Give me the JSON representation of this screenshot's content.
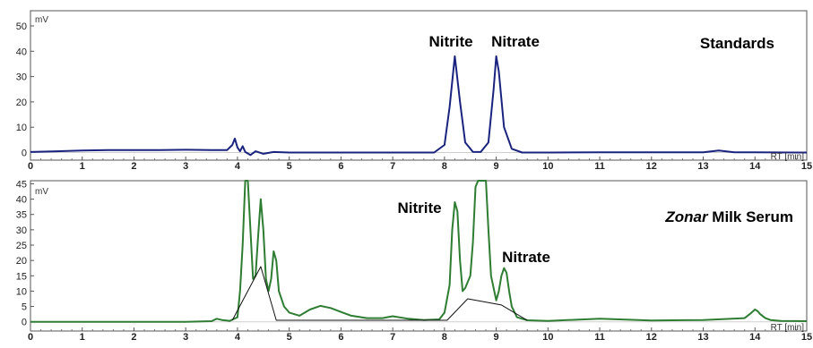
{
  "chart_data": [
    {
      "type": "line",
      "panel": "top",
      "y_unit_label": "mV",
      "x_unit_label": "RT [min]",
      "xlim": [
        0,
        15
      ],
      "ylim": [
        -3,
        56
      ],
      "x_ticks": [
        "0",
        "1",
        "2",
        "3",
        "4",
        "5",
        "6",
        "7",
        "8",
        "9",
        "10",
        "11",
        "12",
        "13",
        "14",
        "15"
      ],
      "y_ticks": [
        "0",
        "10",
        "20",
        "30",
        "40",
        "50"
      ],
      "label": "Standards",
      "annotations": [
        {
          "text": "Nitrite",
          "x": 8.2,
          "y": 41
        },
        {
          "text": "Nitrate",
          "x": 9.0,
          "y": 41
        }
      ],
      "color": "#1a237e",
      "series": [
        {
          "x": [
            0,
            0.5,
            1.0,
            1.5,
            2.0,
            2.5,
            3.0,
            3.5,
            3.8,
            3.9,
            3.95,
            4.0,
            4.05,
            4.1,
            4.15,
            4.25,
            4.35,
            4.5,
            4.7,
            5.0,
            6.0,
            7.0,
            7.8,
            8.0,
            8.1,
            8.2,
            8.3,
            8.4,
            8.55,
            8.7,
            8.85,
            8.95,
            9.0,
            9.05,
            9.15,
            9.3,
            9.5,
            10.0,
            11.0,
            12.0,
            13.0,
            13.3,
            13.6,
            14.0,
            15.0
          ],
          "y": [
            0.2,
            0.5,
            0.8,
            1.0,
            1.0,
            1.0,
            1.1,
            1.0,
            1.0,
            3.0,
            5.5,
            2.0,
            0.5,
            2.5,
            0.2,
            -1.0,
            0.5,
            -0.5,
            0.2,
            0.0,
            0.0,
            0.0,
            0.0,
            3.0,
            18.0,
            38.0,
            20.0,
            4.0,
            0.3,
            0.2,
            4.0,
            25.0,
            38.0,
            32.0,
            10.0,
            1.5,
            0.0,
            0.0,
            0.1,
            0.1,
            0.1,
            0.8,
            0.1,
            0.1,
            0.0
          ]
        }
      ]
    },
    {
      "type": "line",
      "panel": "bottom",
      "y_unit_label": "mV",
      "x_unit_label": "RT [min]",
      "xlim": [
        0,
        15
      ],
      "ylim": [
        -3,
        46
      ],
      "x_ticks": [
        "0",
        "1",
        "2",
        "3",
        "4",
        "5",
        "6",
        "7",
        "8",
        "9",
        "10",
        "11",
        "12",
        "13",
        "14",
        "15"
      ],
      "y_ticks": [
        "0",
        "5",
        "10",
        "15",
        "20",
        "25",
        "30",
        "35",
        "40",
        "45"
      ],
      "label_italic": "Zonar",
      "label_rest": " Milk Serum",
      "annotations": [
        {
          "text": "Nitrite",
          "x": 7.55,
          "y": 40
        },
        {
          "text": "Nitrate",
          "x": 9.0,
          "y": 22
        }
      ],
      "color": "#2e7d32",
      "series": [
        {
          "x": [
            0,
            1.0,
            2.0,
            3.0,
            3.5,
            3.6,
            3.7,
            3.85,
            4.0,
            4.05,
            4.1,
            4.15,
            4.2,
            4.25,
            4.3,
            4.35,
            4.4,
            4.45,
            4.5,
            4.55,
            4.6,
            4.65,
            4.7,
            4.75,
            4.8,
            4.9,
            5.0,
            5.2,
            5.4,
            5.6,
            5.8,
            6.0,
            6.2,
            6.5,
            6.8,
            7.0,
            7.3,
            7.6,
            7.9,
            8.0,
            8.1,
            8.15,
            8.2,
            8.25,
            8.3,
            8.35,
            8.4,
            8.5,
            8.55,
            8.6,
            8.65,
            8.7,
            8.75,
            8.8,
            8.85,
            8.9,
            9.0,
            9.05,
            9.1,
            9.15,
            9.2,
            9.25,
            9.3,
            9.4,
            9.6,
            10.0,
            11.0,
            12.0,
            13.0,
            13.8,
            13.9,
            14.0,
            14.05,
            14.1,
            14.2,
            14.3,
            14.5,
            15.0
          ],
          "y": [
            0.0,
            0.0,
            0.0,
            0.0,
            0.2,
            1.0,
            0.6,
            0.3,
            1.5,
            10.0,
            25.0,
            48.0,
            48.0,
            30.0,
            14.0,
            15.0,
            28.0,
            40.0,
            30.0,
            14.0,
            10.0,
            14.0,
            23.0,
            20.0,
            10.0,
            5.0,
            3.0,
            2.0,
            4.0,
            5.2,
            4.5,
            3.2,
            2.0,
            1.2,
            1.2,
            1.8,
            1.0,
            0.6,
            0.8,
            3.0,
            12.0,
            30.0,
            39.0,
            36.0,
            20.0,
            10.0,
            11.0,
            15.0,
            26.0,
            44.0,
            48.0,
            48.0,
            48.0,
            48.0,
            30.0,
            15.0,
            7.0,
            10.0,
            15.0,
            17.5,
            16.0,
            10.0,
            5.0,
            1.5,
            0.5,
            0.3,
            1.0,
            0.4,
            0.6,
            1.2,
            2.5,
            4.0,
            3.5,
            2.5,
            1.2,
            0.6,
            0.3,
            0.2
          ]
        },
        {
          "name_role": "baseline",
          "x": [
            3.9,
            4.45,
            4.75,
            8.05,
            8.45,
            9.1,
            9.6
          ],
          "y": [
            0.5,
            18.0,
            0.5,
            0.5,
            7.5,
            5.5,
            0.5
          ]
        }
      ]
    }
  ]
}
